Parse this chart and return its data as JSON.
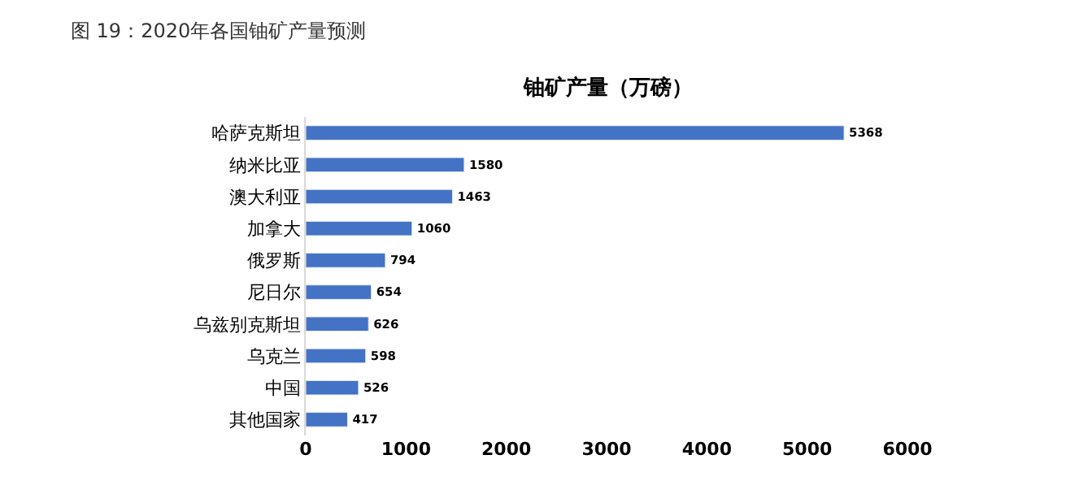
{
  "chart_data": {
    "type": "bar",
    "orientation": "horizontal",
    "title": "图 19：2020年各国铀矿产量预测",
    "subtitle": "铀矿产量（万磅）",
    "categories": [
      "哈萨克斯坦",
      "纳米比亚",
      "澳大利亚",
      "加拿大",
      "俄罗斯",
      "尼日尔",
      "乌兹别克斯坦",
      "乌克兰",
      "中国",
      "其他国家"
    ],
    "values": [
      5368,
      1580,
      1463,
      1060,
      794,
      654,
      626,
      598,
      526,
      417
    ],
    "color": "#4472c4",
    "xlim": [
      0,
      6000
    ],
    "xticks": [
      0,
      1000,
      2000,
      3000,
      4000,
      5000,
      6000
    ],
    "data_labels": true,
    "legend": false
  }
}
